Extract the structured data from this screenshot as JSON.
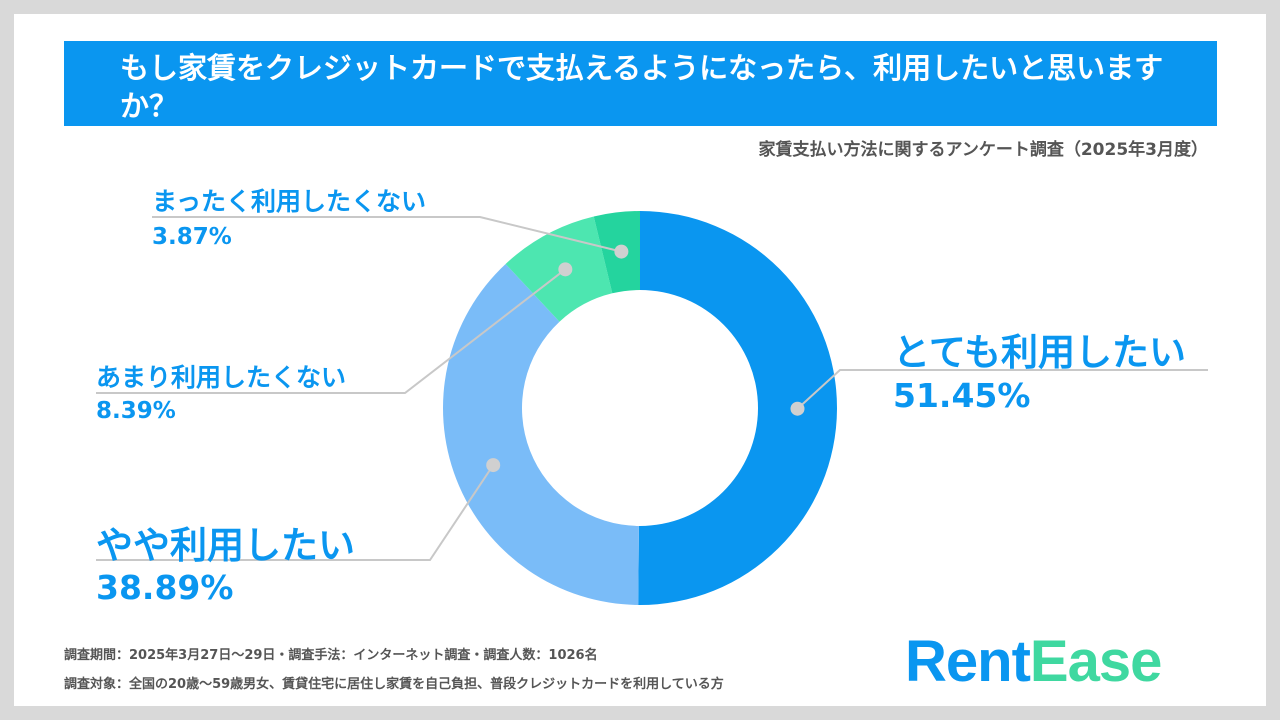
{
  "title": "もし家賃をクレジットカードで支払えるようになったら、利用したいと思いますか？",
  "subtitle": "家賃支払い方法に関するアンケート調査（2025年3月度）",
  "footer": {
    "line1": "調査期間：2025年3月27日～29日・調査手法：インターネット調査・調査人数：1026名",
    "line2": "調査対象：全国の20歳～59歳男女、賃貸住宅に居住し家賃を自己負担、普段クレジットカードを利用している方"
  },
  "logo": {
    "part1": "Rent",
    "part2": "Ease"
  },
  "chart_data": {
    "type": "pie",
    "donut": true,
    "legend": "none",
    "slices": [
      {
        "label": "とても利用したい",
        "value": 51.45,
        "display": "51.45%",
        "color": "#0a96f0"
      },
      {
        "label": "やや利用したい",
        "value": 38.89,
        "display": "38.89%",
        "color": "#7abcf8"
      },
      {
        "label": "あまり利用したくない",
        "value": 8.39,
        "display": "8.39%",
        "color": "#4de6b0"
      },
      {
        "label": "まったく利用したくない",
        "value": 3.87,
        "display": "3.87%",
        "color": "#24d49e"
      }
    ]
  }
}
